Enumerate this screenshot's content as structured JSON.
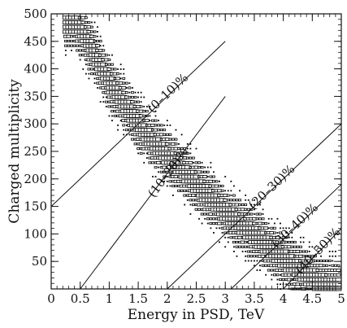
{
  "chart_data": {
    "type": "scatter",
    "title": "",
    "xlabel": "Energy in PSD, TeV",
    "ylabel": "Charged multiplicity",
    "xlim": [
      0,
      5
    ],
    "ylim": [
      0,
      500
    ],
    "x_ticks": [
      "0",
      "0.5",
      "1",
      "1.5",
      "2",
      "2.5",
      "3",
      "3.5",
      "4",
      "4.5",
      "5"
    ],
    "y_ticks": [
      "50",
      "100",
      "150",
      "200",
      "250",
      "300",
      "350",
      "400",
      "450",
      "500"
    ],
    "grid": false,
    "legend": "none",
    "plot_style": "box-density scatter",
    "ridge": {
      "x": [
        0.4,
        0.6,
        0.8,
        1.0,
        1.2,
        1.4,
        1.6,
        1.8,
        2.0,
        2.2,
        2.4,
        2.6,
        2.8,
        3.0,
        3.2,
        3.4,
        3.6,
        3.8,
        4.0,
        4.2,
        4.4,
        4.6,
        4.8
      ],
      "y": [
        485,
        455,
        415,
        375,
        345,
        315,
        285,
        262,
        242,
        222,
        200,
        178,
        160,
        140,
        122,
        105,
        90,
        72,
        55,
        40,
        25,
        13,
        5
      ]
    },
    "centrality_boundaries": [
      {
        "label": "(0–10)%",
        "x": [
          0,
          3.0
        ],
        "y": [
          150,
          450
        ]
      },
      {
        "label": "(10–20)%",
        "x": [
          0.5,
          3.0
        ],
        "y": [
          0,
          350
        ]
      },
      {
        "label": "(20–30)%",
        "x": [
          2.0,
          5.0
        ],
        "y": [
          0,
          300
        ]
      },
      {
        "label": "(30–40)%",
        "x": [
          3.1,
          5.0
        ],
        "y": [
          0,
          190
        ]
      },
      {
        "label": "(40–50)%",
        "x": [
          4.0,
          5.0
        ],
        "y": [
          0,
          110
        ]
      }
    ],
    "line_color": "#111111",
    "marker_color": "#000000"
  }
}
